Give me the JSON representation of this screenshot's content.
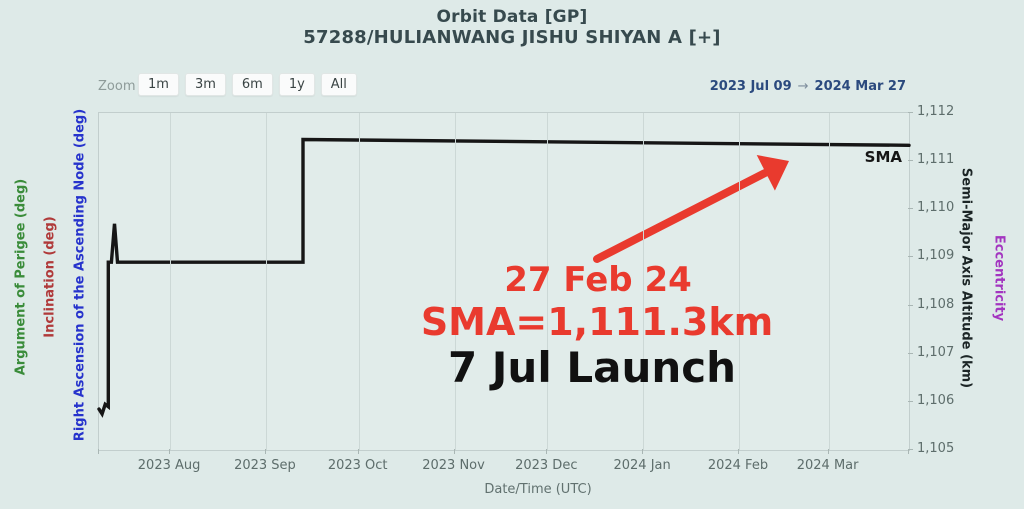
{
  "title": {
    "line1": "Orbit Data [GP]",
    "line2": "57288/HULIANWANG JISHU SHIYAN A [+]"
  },
  "toolbar": {
    "zoom_label": "Zoom",
    "buttons": [
      "1m",
      "3m",
      "6m",
      "1y",
      "All"
    ],
    "range_from": "2023 Jul 09",
    "range_arrow": "→",
    "range_to": "2024 Mar 27"
  },
  "axes": {
    "left_titles": [
      {
        "text": "Argument of Perigee (deg)",
        "color": "#3a8c3a"
      },
      {
        "text": "Inclination (deg)",
        "color": "#b03a3a"
      },
      {
        "text": "Right Ascension of the Ascending Node (deg)",
        "color": "#2633cc"
      }
    ],
    "right_titles": [
      {
        "text": "Semi-Major Axis Altitude (km)",
        "color": "#1c2526"
      },
      {
        "text": "Eccentricity",
        "color": "#a335c0"
      }
    ],
    "x_title": "Date/Time (UTC)"
  },
  "chart_data": {
    "type": "line",
    "title": "Orbit Data [GP] — SMA vs Date",
    "x_start": "2023-07-09",
    "x_end": "2024-03-27",
    "ylim": [
      1105,
      1112
    ],
    "grid": "vertical-months-only",
    "x_ticks": [
      {
        "date": "2023-08-01",
        "label": "2023 Aug"
      },
      {
        "date": "2023-09-01",
        "label": "2023 Sep"
      },
      {
        "date": "2023-10-01",
        "label": "2023 Oct"
      },
      {
        "date": "2023-11-01",
        "label": "2023 Nov"
      },
      {
        "date": "2023-12-01",
        "label": "2023 Dec"
      },
      {
        "date": "2024-01-01",
        "label": "2024 Jan"
      },
      {
        "date": "2024-02-01",
        "label": "2024 Feb"
      },
      {
        "date": "2024-03-01",
        "label": "2024 Mar"
      }
    ],
    "y_ticks": [
      {
        "km": 1112,
        "label": "1,112"
      },
      {
        "km": 1111,
        "label": "1,111"
      },
      {
        "km": 1110,
        "label": "1,110"
      },
      {
        "km": 1109,
        "label": "1,109"
      },
      {
        "km": 1108,
        "label": "1,108"
      },
      {
        "km": 1107,
        "label": "1,107"
      },
      {
        "km": 1106,
        "label": "1,106"
      },
      {
        "km": 1105,
        "label": "1,105"
      }
    ],
    "series": [
      {
        "name": "SMA",
        "units": "km",
        "color": "#161616",
        "points": [
          {
            "date": "2023-07-09",
            "km": 1105.85
          },
          {
            "date": "2023-07-10",
            "km": 1105.75
          },
          {
            "date": "2023-07-11",
            "km": 1105.95
          },
          {
            "date": "2023-07-12",
            "km": 1105.9
          },
          {
            "date": "2023-07-12",
            "km": 1108.9
          },
          {
            "date": "2023-07-13",
            "km": 1108.9
          },
          {
            "date": "2023-07-14",
            "km": 1109.7
          },
          {
            "date": "2023-07-15",
            "km": 1108.9
          },
          {
            "date": "2023-09-13",
            "km": 1108.9
          },
          {
            "date": "2023-09-13",
            "km": 1111.45
          },
          {
            "date": "2024-03-27",
            "km": 1111.33
          }
        ]
      }
    ]
  },
  "annotations": {
    "series_label": "SMA",
    "event_date": "27 Feb 24",
    "event_sma": "SMA=1,111.3km",
    "launch": "7 Jul Launch",
    "accent_red": "#e93a2e"
  }
}
